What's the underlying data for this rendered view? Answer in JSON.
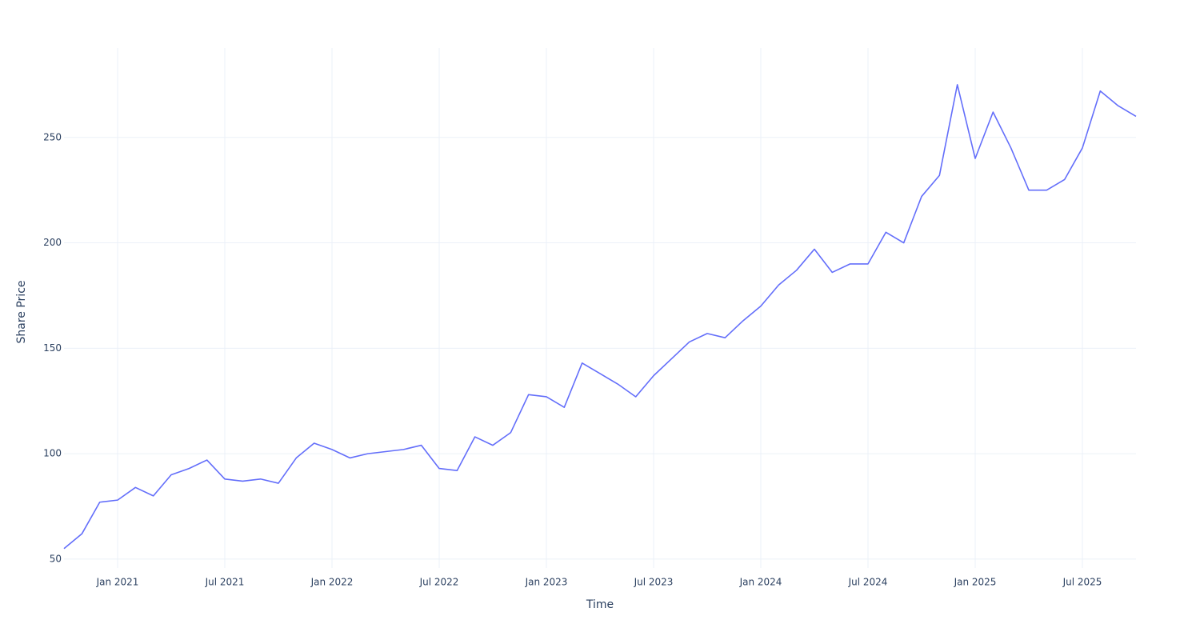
{
  "chart_data": {
    "type": "line",
    "x_label": "Time",
    "y_label": "Share Price",
    "x": [
      "2020-10",
      "2020-11",
      "2020-12",
      "2021-01",
      "2021-02",
      "2021-03",
      "2021-04",
      "2021-05",
      "2021-06",
      "2021-07",
      "2021-08",
      "2021-09",
      "2021-10",
      "2021-11",
      "2021-12",
      "2022-01",
      "2022-02",
      "2022-03",
      "2022-04",
      "2022-05",
      "2022-06",
      "2022-07",
      "2022-08",
      "2022-09",
      "2022-10",
      "2022-11",
      "2022-12",
      "2023-01",
      "2023-02",
      "2023-03",
      "2023-04",
      "2023-05",
      "2023-06",
      "2023-07",
      "2023-08",
      "2023-09",
      "2023-10",
      "2023-11",
      "2023-12",
      "2024-01",
      "2024-02",
      "2024-03",
      "2024-04",
      "2024-05",
      "2024-06",
      "2024-07",
      "2024-08",
      "2024-09",
      "2024-10",
      "2024-11",
      "2024-12",
      "2025-01",
      "2025-02",
      "2025-03",
      "2025-04",
      "2025-05",
      "2025-06",
      "2025-07",
      "2025-08",
      "2025-09",
      "2025-10"
    ],
    "series": [
      {
        "name": "Share Price",
        "color": "#636efa",
        "values": [
          55,
          62,
          77,
          78,
          84,
          80,
          90,
          93,
          97,
          88,
          87,
          88,
          86,
          98,
          105,
          102,
          98,
          100,
          101,
          102,
          104,
          93,
          92,
          108,
          104,
          110,
          128,
          127,
          122,
          143,
          138,
          133,
          127,
          137,
          145,
          153,
          157,
          155,
          163,
          170,
          180,
          187,
          197,
          186,
          190,
          190,
          205,
          200,
          222,
          232,
          275,
          240,
          262,
          245,
          225,
          225,
          230,
          245,
          272,
          265,
          260
        ]
      }
    ],
    "xlim": [
      "2020-10",
      "2025-10"
    ],
    "xticks": [
      {
        "value": "2021-01",
        "label": "Jan 2021"
      },
      {
        "value": "2021-07",
        "label": "Jul 2021"
      },
      {
        "value": "2022-01",
        "label": "Jan 2022"
      },
      {
        "value": "2022-07",
        "label": "Jul 2022"
      },
      {
        "value": "2023-01",
        "label": "Jan 2023"
      },
      {
        "value": "2023-07",
        "label": "Jul 2023"
      },
      {
        "value": "2024-01",
        "label": "Jan 2024"
      },
      {
        "value": "2024-07",
        "label": "Jul 2024"
      },
      {
        "value": "2025-01",
        "label": "Jan 2025"
      },
      {
        "value": "2025-07",
        "label": "Jul 2025"
      }
    ],
    "ylim": [
      45.8,
      292.4
    ],
    "yticks": [
      50,
      100,
      150,
      200,
      250
    ],
    "grid": true
  }
}
